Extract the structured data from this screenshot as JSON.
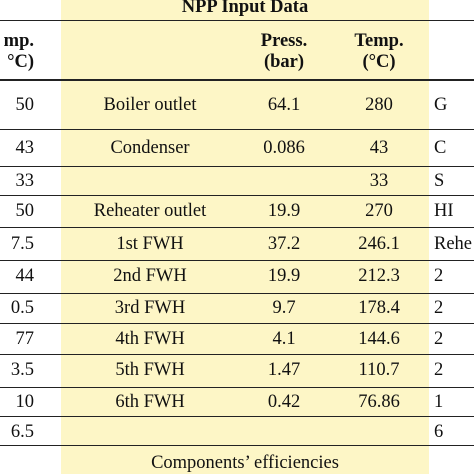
{
  "table": {
    "title": "NPP Input Data",
    "left_header": [
      "mp.",
      "°C)"
    ],
    "header_press": [
      "Press.",
      "(bar)"
    ],
    "header_temp": [
      "Temp.",
      "(°C)"
    ],
    "rows": [
      {
        "left": "50",
        "name": "Boiler outlet",
        "press": "64.1",
        "temp": "280",
        "right": "G"
      },
      {
        "left": "43",
        "name": "Condenser",
        "press": "0.086",
        "temp": "43",
        "right": "C"
      },
      {
        "left": "33",
        "name": "",
        "press": "",
        "temp": "33",
        "right": "S"
      },
      {
        "left": "50",
        "name": "Reheater outlet",
        "press": "19.9",
        "temp": "270",
        "right": "HI"
      },
      {
        "left": "7.5",
        "name": "1st FWH",
        "press": "37.2",
        "temp": "246.1",
        "right": "Rehe"
      },
      {
        "left": "44",
        "name": "2nd FWH",
        "press": "19.9",
        "temp": "212.3",
        "right": "2"
      },
      {
        "left": "0.5",
        "name": "3rd FWH",
        "press": "9.7",
        "temp": "178.4",
        "right": "2"
      },
      {
        "left": "77",
        "name": "4th FWH",
        "press": "4.1",
        "temp": "144.6",
        "right": "2"
      },
      {
        "left": "3.5",
        "name": "5th FWH",
        "press": "1.47",
        "temp": "110.7",
        "right": "2"
      },
      {
        "left": "10",
        "name": "6th FWH",
        "press": "0.42",
        "temp": "76.86",
        "right": "1"
      },
      {
        "left": "6.5",
        "name": "",
        "press": "",
        "temp": "",
        "right": "6"
      }
    ],
    "footer": "Components’ efficiencies"
  },
  "colors": {
    "band": "#fdf6c6",
    "rules": "#222222"
  }
}
